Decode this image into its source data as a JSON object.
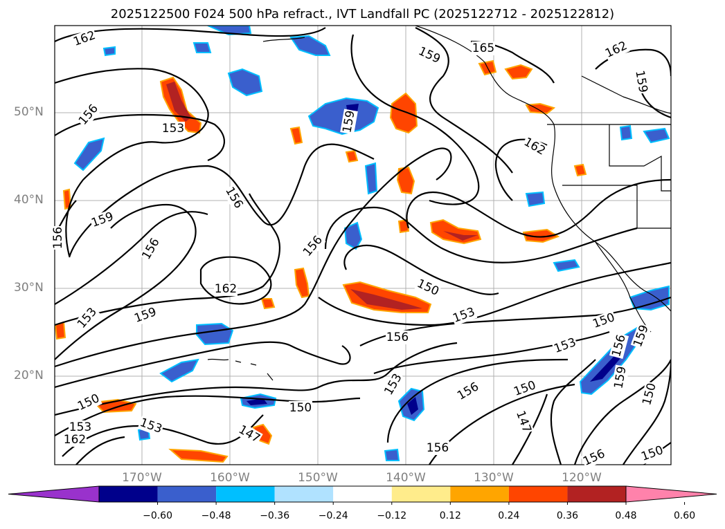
{
  "title": "2025122500 F024 500 hPa refract., IVT Landfall PC (2025122712 - 2025122812)",
  "lat_labels": [
    "50°N",
    "40°N",
    "30°N",
    "20°N"
  ],
  "lon_labels": [
    "170°W",
    "160°W",
    "150°W",
    "140°W",
    "130°W",
    "120°W"
  ],
  "contour_labels": [
    {
      "text": "162"
    },
    {
      "text": "159"
    },
    {
      "text": "165"
    },
    {
      "text": "162"
    },
    {
      "text": "159"
    },
    {
      "text": "156"
    },
    {
      "text": "153"
    },
    {
      "text": "159"
    },
    {
      "text": "162"
    },
    {
      "text": "156"
    },
    {
      "text": "159"
    },
    {
      "text": "156"
    },
    {
      "text": "156"
    },
    {
      "text": "156"
    },
    {
      "text": "162"
    },
    {
      "text": "150"
    },
    {
      "text": "159"
    },
    {
      "text": "153"
    },
    {
      "text": "153"
    },
    {
      "text": "156"
    },
    {
      "text": "150"
    },
    {
      "text": "153"
    },
    {
      "text": "153"
    },
    {
      "text": "156"
    },
    {
      "text": "150"
    },
    {
      "text": "156"
    },
    {
      "text": "159"
    },
    {
      "text": "159"
    },
    {
      "text": "150"
    },
    {
      "text": "150"
    },
    {
      "text": "150"
    },
    {
      "text": "147"
    },
    {
      "text": "147"
    },
    {
      "text": "156"
    },
    {
      "text": "153"
    },
    {
      "text": "162"
    },
    {
      "text": "153"
    },
    {
      "text": "156"
    },
    {
      "text": "150"
    }
  ],
  "colorbar": {
    "ticks": [
      "−0.60",
      "−0.48",
      "−0.36",
      "−0.24",
      "−0.12",
      "0.12",
      "0.24",
      "0.36",
      "0.48",
      "0.60"
    ],
    "colors": [
      "#9932cc",
      "#00008b",
      "#3a5fcd",
      "#00bfff",
      "#b0e2ff",
      "#ffffff",
      "#ffec8b",
      "#ffa500",
      "#ff4500",
      "#b22222",
      "#ff82ab"
    ]
  }
}
